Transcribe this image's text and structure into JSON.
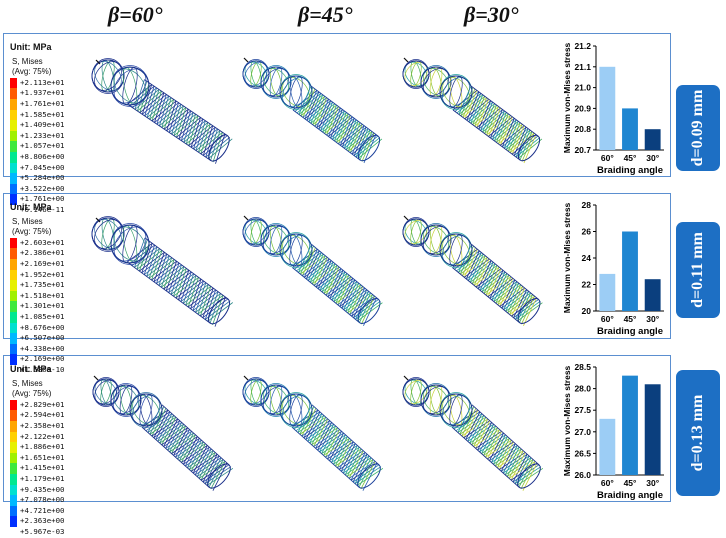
{
  "headers": [
    "β=60°",
    "β=45°",
    "β=30°"
  ],
  "colors": {
    "frame": "#5b8fd0",
    "tag": "#1d6fc4",
    "bar60": "#9ccdf5",
    "bar45": "#1f86d1",
    "bar30": "#0b3f7e"
  },
  "panels": [
    {
      "unit": "Unit: MPa",
      "legend_title": [
        "S, Mises",
        "(Avg: 75%)"
      ],
      "legend_values": [
        "+2.113e+01",
        "+1.937e+01",
        "+1.761e+01",
        "+1.585e+01",
        "+1.409e+01",
        "+1.233e+01",
        "+1.057e+01",
        "+8.806e+00",
        "+7.045e+00",
        "+5.284e+00",
        "+3.522e+00",
        "+1.761e+00",
        "+6.146e-11"
      ],
      "tag": "d=0.09 mm"
    },
    {
      "unit": "Unit: MPa",
      "legend_title": [
        "S, Mises",
        "(Avg: 75%)"
      ],
      "legend_values": [
        "+2.603e+01",
        "+2.386e+01",
        "+2.169e+01",
        "+1.952e+01",
        "+1.735e+01",
        "+1.518e+01",
        "+1.301e+01",
        "+1.085e+01",
        "+8.676e+00",
        "+6.507e+00",
        "+4.338e+00",
        "+2.169e+00",
        "+1.580e-10"
      ],
      "tag": "d=0.11 mm"
    },
    {
      "unit": "Unit: MPa",
      "legend_title": [
        "S, Mises",
        "(Avg: 75%)"
      ],
      "legend_values": [
        "+2.829e+01",
        "+2.594e+01",
        "+2.358e+01",
        "+2.122e+01",
        "+1.886e+01",
        "+1.651e+01",
        "+1.415e+01",
        "+1.179e+01",
        "+9.435e+00",
        "+7.078e+00",
        "+4.721e+00",
        "+2.363e+00",
        "+5.967e-03"
      ],
      "tag": "d=0.13 mm"
    }
  ],
  "chart_data": [
    {
      "type": "bar",
      "categories": [
        "60°",
        "45°",
        "30°"
      ],
      "values": [
        21.1,
        20.9,
        20.8
      ],
      "ylim": [
        20.7,
        21.2
      ],
      "yticks": [
        "20.7",
        "20.8",
        "20.9",
        "21.0",
        "21.1",
        "21.2"
      ],
      "xlabel": "Braiding angle",
      "ylabel": "Maximum von-Mises stress"
    },
    {
      "type": "bar",
      "categories": [
        "60°",
        "45°",
        "30°"
      ],
      "values": [
        22.8,
        26.0,
        22.4
      ],
      "ylim": [
        20,
        28
      ],
      "yticks": [
        "20",
        "22",
        "24",
        "26",
        "28"
      ],
      "xlabel": "Braiding angle",
      "ylabel": "Maximum von-Mises stress"
    },
    {
      "type": "bar",
      "categories": [
        "60°",
        "45°",
        "30°"
      ],
      "values": [
        27.3,
        28.3,
        28.1
      ],
      "ylim": [
        26.0,
        28.5
      ],
      "yticks": [
        "26.0",
        "26.5",
        "27.0",
        "27.5",
        "28.0",
        "28.5"
      ],
      "xlabel": "Braiding angle",
      "ylabel": "Maximum von-Mises stress"
    }
  ]
}
